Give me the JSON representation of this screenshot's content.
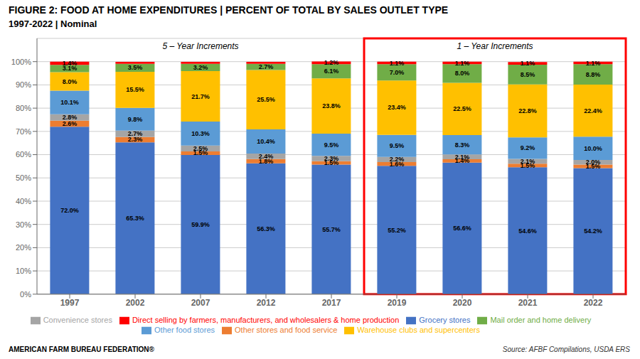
{
  "chart_data": {
    "type": "bar",
    "stacked": true,
    "data_labels": true,
    "grid": true,
    "legend": "bottom",
    "title": "FIGURE 2: FOOD AT HOME EXPENDITURES |  PERCENT OF TOTAL BY SALES OUTLET TYPE",
    "subtitle": "1997-2022 | Nominal",
    "categories": [
      "1997",
      "2002",
      "2007",
      "2012",
      "2017",
      "2019",
      "2020",
      "2021",
      "2022"
    ],
    "series": [
      {
        "name": "Grocery stores",
        "color": "#4472c4",
        "values": [
          72.0,
          65.3,
          59.9,
          56.3,
          55.7,
          55.2,
          56.6,
          54.6,
          54.2
        ],
        "value_labels": [
          "72.0%",
          "65.3%",
          "59.9%",
          "56.3%",
          "55.7%",
          "55.2%",
          "56.6%",
          "54.6%",
          "54.2%"
        ]
      },
      {
        "name": "Other stores and food service",
        "color": "#ed7d31",
        "values": [
          2.6,
          2.3,
          1.5,
          1.8,
          1.5,
          1.6,
          1.4,
          1.5,
          1.5
        ],
        "value_labels": [
          "2.6%",
          "2.3%",
          "1.5%",
          "1.8%",
          "1.5%",
          "1.6%",
          "1.4%",
          "1.5%",
          "1.5%"
        ]
      },
      {
        "name": "Convenience stores",
        "color": "#a5a5a5",
        "values": [
          2.8,
          2.7,
          2.5,
          2.4,
          2.3,
          2.2,
          2.1,
          2.1,
          2.0
        ],
        "value_labels": [
          "2.8%",
          "2.7%",
          "2.5%",
          "2.4%",
          "2.3%",
          "2.2%",
          "2.1%",
          "2.1%",
          "2.0%"
        ]
      },
      {
        "name": "Other food stores",
        "color": "#5b9bd5",
        "values": [
          10.1,
          9.8,
          10.3,
          10.4,
          9.5,
          9.5,
          8.3,
          9.2,
          10.0
        ],
        "value_labels": [
          "10.1%",
          "9.8%",
          "10.3%",
          "10.4%",
          "9.5%",
          "9.5%",
          "8.3%",
          "9.2%",
          "10.0%"
        ]
      },
      {
        "name": "Warehouse clubs and supercenters",
        "color": "#ffc000",
        "values": [
          8.0,
          15.5,
          21.7,
          25.5,
          23.8,
          23.4,
          22.5,
          22.8,
          22.4
        ],
        "value_labels": [
          "8.0%",
          "15.5%",
          "21.7%",
          "25.5%",
          "23.8%",
          "23.4%",
          "22.5%",
          "22.8%",
          "22.4%"
        ]
      },
      {
        "name": "Mail order and home delivery",
        "color": "#70ad47",
        "values": [
          3.1,
          3.5,
          3.2,
          2.7,
          6.1,
          7.0,
          8.0,
          8.5,
          8.8
        ],
        "value_labels": [
          "3.1%",
          "3.5%",
          "3.2%",
          "2.7%",
          "6.1%",
          "7.0%",
          "8.0%",
          "8.5%",
          "8.8%"
        ]
      },
      {
        "name": "Direct selling by farmers, manufacturers, and wholesalers & home production",
        "color": "#ff0000",
        "values": [
          1.4,
          0.8,
          0.8,
          0.8,
          1.2,
          1.1,
          1.1,
          1.1,
          1.1
        ],
        "value_labels": [
          "1.4%",
          null,
          null,
          null,
          "1.2%",
          "1.1%",
          "1.1%",
          "1.1%",
          "1.1%"
        ]
      }
    ],
    "ylim": [
      0,
      110
    ],
    "yticks": [
      {
        "value": 0,
        "label": "0%"
      },
      {
        "value": 10,
        "label": "10%"
      },
      {
        "value": 20,
        "label": "20%"
      },
      {
        "value": 30,
        "label": "30%"
      },
      {
        "value": 40,
        "label": "40%"
      },
      {
        "value": 50,
        "label": "50%"
      },
      {
        "value": 60,
        "label": "60%"
      },
      {
        "value": 70,
        "label": "70%"
      },
      {
        "value": 80,
        "label": "80%"
      },
      {
        "value": 90,
        "label": "90%"
      },
      {
        "value": 100,
        "label": "100%"
      }
    ],
    "annotations": [
      {
        "text": "5 – Year Increments",
        "categories": [
          "1997",
          "2017"
        ]
      },
      {
        "text": "1 – Year Increments",
        "categories": [
          "2019",
          "2022"
        ],
        "color": "#ff0000"
      }
    ],
    "source": "Source: AFBF Compilations, USDA ERS",
    "credit": "AMERICAN FARM BUREAU FEDERATION®"
  }
}
